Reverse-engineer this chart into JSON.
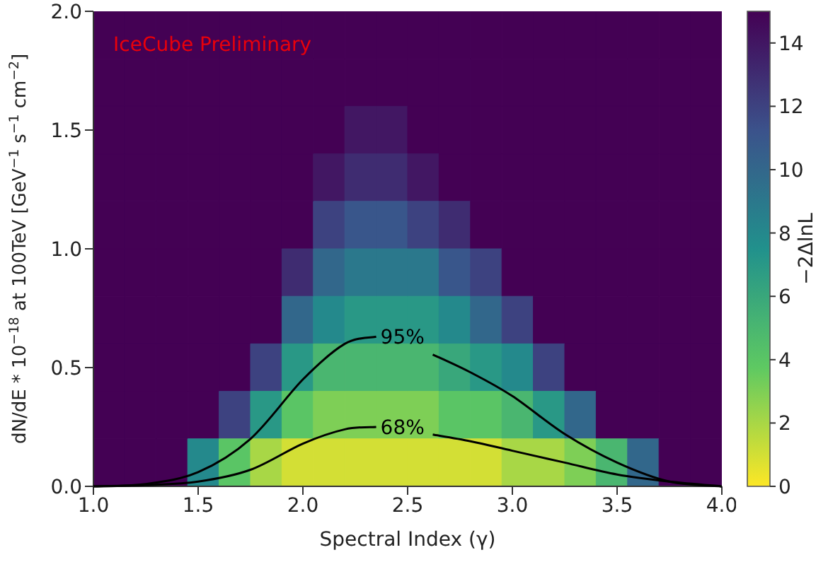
{
  "chart_data": {
    "type": "heatmap",
    "xlabel": "Spectral Index (γ)",
    "ylabel": "dN/dE * 10$^{−18}$ at 100TeV [GeV$^{−1}$ s$^{−1}$ cm$^{−2}$]",
    "clabel": "−2ΔlnL",
    "annotations": [
      "IceCube Preliminary",
      "95%",
      "68%"
    ],
    "xlim": [
      1,
      4
    ],
    "xticks": [
      {
        "value": 1,
        "label": "1.0"
      },
      {
        "value": 1.5,
        "label": "1.5"
      },
      {
        "value": 2,
        "label": "2.0"
      },
      {
        "value": 2.5,
        "label": "2.5"
      },
      {
        "value": 3,
        "label": "3.0"
      },
      {
        "value": 3.5,
        "label": "3.5"
      },
      {
        "value": 4,
        "label": "4.0"
      }
    ],
    "ylim": [
      0,
      2
    ],
    "yticks": [
      {
        "value": 0,
        "label": "0.0"
      },
      {
        "value": 0.5,
        "label": "0.5"
      },
      {
        "value": 1,
        "label": "1.0"
      },
      {
        "value": 1.5,
        "label": "1.5"
      },
      {
        "value": 2,
        "label": "2.0"
      }
    ],
    "clim": [
      0,
      15
    ],
    "cticks": [
      0,
      2,
      4,
      6,
      8,
      10,
      12,
      14
    ],
    "cells": [
      [
        15,
        15,
        15,
        15,
        15,
        15,
        15,
        15,
        15,
        15,
        15,
        15,
        15,
        15,
        15,
        15,
        15,
        15,
        15,
        15
      ],
      [
        15,
        15,
        15,
        15,
        15,
        15,
        15,
        15,
        15,
        15,
        15,
        15,
        15,
        15,
        15,
        15,
        15,
        15,
        15,
        15
      ],
      [
        15,
        15,
        15,
        15,
        15,
        15,
        15,
        15,
        14,
        14,
        15,
        15,
        15,
        15,
        15,
        15,
        15,
        15,
        15,
        15
      ],
      [
        15,
        15,
        15,
        15,
        15,
        15,
        15,
        14,
        13,
        13,
        14,
        15,
        15,
        15,
        15,
        15,
        15,
        15,
        15,
        15
      ],
      [
        15,
        15,
        15,
        15,
        15,
        15,
        15,
        12,
        11,
        11,
        12,
        13,
        15,
        15,
        15,
        15,
        15,
        15,
        15,
        15
      ],
      [
        15,
        15,
        15,
        15,
        15,
        15,
        13,
        10,
        9,
        9,
        9,
        11,
        12,
        15,
        15,
        15,
        15,
        15,
        15,
        15
      ],
      [
        15,
        15,
        15,
        15,
        15,
        15,
        10,
        8,
        7,
        7,
        7,
        8,
        10,
        12,
        15,
        15,
        15,
        15,
        15,
        15
      ],
      [
        15,
        15,
        15,
        15,
        15,
        12,
        7,
        5,
        5,
        5,
        5,
        6,
        7,
        8,
        12,
        15,
        15,
        15,
        15,
        15
      ],
      [
        15,
        15,
        15,
        15,
        12,
        7,
        4,
        3,
        3,
        3,
        3,
        4,
        4,
        5,
        7,
        10,
        15,
        15,
        15,
        15
      ],
      [
        15,
        15,
        15,
        8,
        4,
        2,
        1,
        1,
        1,
        1,
        1,
        1,
        1,
        2,
        2,
        3,
        5,
        10,
        15,
        15
      ]
    ]
  }
}
